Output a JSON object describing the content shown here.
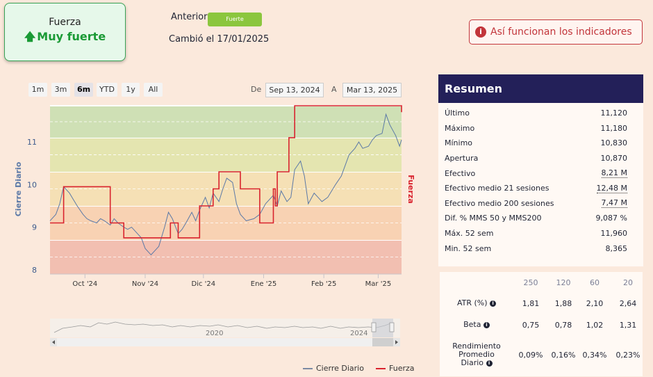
{
  "fuerza": {
    "title": "Fuerza",
    "arrow": "🡅",
    "value": "Muy fuerte"
  },
  "previous": {
    "label": "Anterior",
    "badge": "Fuerte",
    "changed": "Cambió el 17/01/2025"
  },
  "info_button": {
    "icon": "i",
    "label": "Así funcionan los indicadores"
  },
  "range_buttons": [
    "1m",
    "3m",
    "6m",
    "YTD",
    "1y",
    "All"
  ],
  "active_range": "6m",
  "date_range": {
    "from_label": "De",
    "from": "Sep 13, 2024",
    "to_label": "A",
    "to": "Mar 13, 2025"
  },
  "chart_data": {
    "type": "line",
    "y_axis_label": "Cierre Diario",
    "y_axis_right_label": "Fuerza",
    "y_ticks": [
      "8",
      "9",
      "10",
      "11"
    ],
    "ylim": [
      7.9,
      11.85
    ],
    "x_ticks": [
      "Oct '24",
      "Nov '24",
      "Dic '24",
      "Ene '25",
      "Feb '25",
      "Mar '25"
    ],
    "x_range": [
      "2024-09-13",
      "2025-03-13"
    ],
    "bands": [
      {
        "from": 7.9,
        "to": 8.7,
        "color": "#f2bfb1"
      },
      {
        "from": 8.7,
        "to": 9.5,
        "color": "#f8d2b3"
      },
      {
        "from": 9.5,
        "to": 10.3,
        "color": "#f5e0b5"
      },
      {
        "from": 10.3,
        "to": 11.1,
        "color": "#e4e5b0"
      },
      {
        "from": 11.1,
        "to": 11.85,
        "color": "#cfe0b5"
      }
    ],
    "series": [
      {
        "name": "Cierre Diario",
        "color": "#5b79a7",
        "x": [
          "2024-09-13",
          "2024-09-16",
          "2024-09-18",
          "2024-09-20",
          "2024-09-23",
          "2024-09-25",
          "2024-09-27",
          "2024-09-30",
          "2024-10-02",
          "2024-10-04",
          "2024-10-07",
          "2024-10-09",
          "2024-10-11",
          "2024-10-14",
          "2024-10-16",
          "2024-10-18",
          "2024-10-21",
          "2024-10-23",
          "2024-10-25",
          "2024-10-28",
          "2024-10-30",
          "2024-11-01",
          "2024-11-04",
          "2024-11-06",
          "2024-11-08",
          "2024-11-11",
          "2024-11-13",
          "2024-11-15",
          "2024-11-18",
          "2024-11-20",
          "2024-11-22",
          "2024-11-25",
          "2024-11-27",
          "2024-11-29",
          "2024-12-02",
          "2024-12-04",
          "2024-12-06",
          "2024-12-09",
          "2024-12-11",
          "2024-12-13",
          "2024-12-16",
          "2024-12-18",
          "2024-12-20",
          "2024-12-23",
          "2024-12-27",
          "2024-12-30",
          "2025-01-02",
          "2025-01-06",
          "2025-01-08",
          "2025-01-10",
          "2025-01-13",
          "2025-01-15",
          "2025-01-17",
          "2025-01-20",
          "2025-01-22",
          "2025-01-24",
          "2025-01-27",
          "2025-01-29",
          "2025-01-31",
          "2025-02-03",
          "2025-02-05",
          "2025-02-07",
          "2025-02-10",
          "2025-02-12",
          "2025-02-14",
          "2025-02-17",
          "2025-02-19",
          "2025-02-21",
          "2025-02-24",
          "2025-02-26",
          "2025-02-28",
          "2025-03-03",
          "2025-03-05",
          "2025-03-07",
          "2025-03-10",
          "2025-03-12",
          "2025-03-13"
        ],
        "values": [
          9.15,
          9.3,
          9.55,
          9.95,
          9.8,
          9.65,
          9.5,
          9.3,
          9.2,
          9.15,
          9.1,
          9.2,
          9.15,
          9.05,
          9.2,
          9.1,
          9.0,
          8.95,
          9.0,
          8.85,
          8.75,
          8.5,
          8.35,
          8.45,
          8.55,
          9.0,
          9.35,
          9.2,
          8.85,
          8.95,
          9.1,
          9.35,
          9.15,
          9.4,
          9.7,
          9.45,
          9.8,
          9.6,
          9.9,
          10.15,
          10.05,
          9.55,
          9.3,
          9.15,
          9.2,
          9.3,
          9.55,
          9.75,
          9.5,
          9.85,
          9.6,
          9.7,
          10.35,
          10.55,
          10.2,
          9.55,
          9.8,
          9.7,
          9.6,
          9.7,
          9.85,
          10.0,
          10.2,
          10.45,
          10.7,
          10.85,
          11.0,
          10.85,
          10.9,
          11.05,
          11.15,
          11.2,
          11.65,
          11.4,
          11.15,
          10.9,
          11.05
        ]
      },
      {
        "name": "Fuerza",
        "color": "#d9232e",
        "x": [
          "2024-09-13",
          "2024-09-20",
          "2024-09-20",
          "2024-10-14",
          "2024-10-14",
          "2024-10-21",
          "2024-10-21",
          "2024-11-14",
          "2024-11-14",
          "2024-11-18",
          "2024-11-18",
          "2024-11-29",
          "2024-11-29",
          "2024-12-06",
          "2024-12-06",
          "2024-12-09",
          "2024-12-09",
          "2024-12-20",
          "2024-12-20",
          "2024-12-30",
          "2024-12-30",
          "2025-01-06",
          "2025-01-06",
          "2025-01-07",
          "2025-01-07",
          "2025-01-08",
          "2025-01-08",
          "2025-01-14",
          "2025-01-14",
          "2025-01-17",
          "2025-01-17",
          "2025-03-13",
          "2025-03-13"
        ],
        "values": [
          9.1,
          9.1,
          9.95,
          9.95,
          9.1,
          9.1,
          8.75,
          8.75,
          9.1,
          9.1,
          8.75,
          8.75,
          9.5,
          9.5,
          9.9,
          9.9,
          10.3,
          10.3,
          9.9,
          9.9,
          9.1,
          9.1,
          9.9,
          9.9,
          9.5,
          9.5,
          10.3,
          10.3,
          11.1,
          11.1,
          11.85,
          11.85,
          11.7
        ]
      }
    ]
  },
  "navigator": {
    "labels": [
      "2020",
      "2024"
    ]
  },
  "legend": [
    {
      "name": "Cierre Diario",
      "color": "#7b8aa3"
    },
    {
      "name": "Fuerza",
      "color": "#d9232e"
    }
  ],
  "resumen": {
    "title": "Resumen",
    "rows": [
      {
        "label": "Último",
        "value": "11,120",
        "dotted": false
      },
      {
        "label": "Máximo",
        "value": "11,180",
        "dotted": false
      },
      {
        "label": "Mínimo",
        "value": "10,830",
        "dotted": false
      },
      {
        "label": "Apertura",
        "value": "10,870",
        "dotted": false
      },
      {
        "label": "Efectivo",
        "value": "8,21 M",
        "dotted": true
      },
      {
        "label": "Efectivo medio 21 sesiones",
        "value": "12,48 M",
        "dotted": true
      },
      {
        "label": "Efectivo medio 200 sesiones",
        "value": "7,47 M",
        "dotted": true
      },
      {
        "label": "Dif. % MMS 50 y MMS200",
        "value": "9,087 %",
        "dotted": false
      },
      {
        "label": "Máx. 52 sem",
        "value": "11,960",
        "dotted": false
      },
      {
        "label": "Min. 52 sem",
        "value": "8,365",
        "dotted": false
      }
    ]
  },
  "stats": {
    "headers": [
      "250",
      "120",
      "60",
      "20"
    ],
    "atr_label": "ATR (%)",
    "atr": [
      "1,81",
      "1,88",
      "2,10",
      "2,64"
    ],
    "beta_label": "Beta",
    "beta": [
      "0,75",
      "0,78",
      "1,02",
      "1,31"
    ],
    "rend_label_1": "Rendimiento",
    "rend_label_2": "Promedio",
    "rend_label_3": "Diario",
    "rend": [
      "0,09%",
      "0,16%",
      "0,34%",
      "0,23%"
    ]
  }
}
